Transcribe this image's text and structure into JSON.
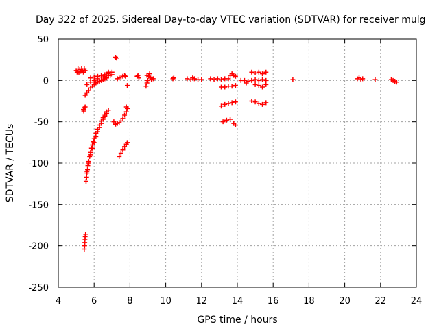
{
  "chart_data": {
    "type": "scatter",
    "title": "Day 322 of 2025, Sidereal Day-to-day VTEC variation (SDTVAR) for receiver mulg",
    "xlabel": "GPS time / hours",
    "ylabel": "SDTVAR / TECUs",
    "xlim": [
      4,
      24
    ],
    "ylim": [
      -250,
      50
    ],
    "xticks": [
      4,
      6,
      8,
      10,
      12,
      14,
      16,
      18,
      20,
      22,
      24
    ],
    "yticks": [
      -250,
      -200,
      -150,
      -100,
      -50,
      0,
      50
    ],
    "grid": true,
    "marker": "plus",
    "color": "#ff0000",
    "series": [
      {
        "points": [
          [
            5.0,
            12
          ],
          [
            5.05,
            10
          ],
          [
            5.1,
            14
          ],
          [
            5.15,
            9
          ],
          [
            5.2,
            13
          ],
          [
            5.25,
            11
          ],
          [
            5.3,
            14
          ],
          [
            5.35,
            12
          ],
          [
            5.4,
            10
          ],
          [
            5.45,
            14
          ],
          [
            5.5,
            12
          ],
          [
            5.4,
            -35
          ],
          [
            5.45,
            -33
          ],
          [
            5.5,
            -32
          ],
          [
            5.42,
            -37
          ],
          [
            5.45,
            -204
          ],
          [
            5.47,
            -200
          ],
          [
            5.48,
            -196
          ],
          [
            5.49,
            -192
          ],
          [
            5.5,
            -189
          ],
          [
            5.52,
            -186
          ],
          [
            5.55,
            -122
          ],
          [
            5.58,
            -117
          ],
          [
            5.6,
            -112
          ],
          [
            5.63,
            -108
          ],
          [
            5.65,
            -103
          ],
          [
            5.7,
            -98
          ],
          [
            5.75,
            -92
          ],
          [
            5.8,
            -87
          ],
          [
            5.85,
            -82
          ],
          [
            5.9,
            -78
          ],
          [
            5.95,
            -74
          ],
          [
            6.0,
            -70
          ],
          [
            6.1,
            -64
          ],
          [
            6.2,
            -59
          ],
          [
            6.3,
            -54
          ],
          [
            6.4,
            -49
          ],
          [
            6.5,
            -45
          ],
          [
            6.6,
            -41
          ],
          [
            6.7,
            -38
          ],
          [
            6.8,
            -36
          ],
          [
            5.6,
            -110
          ],
          [
            5.7,
            -100
          ],
          [
            5.8,
            -90
          ],
          [
            5.9,
            -82
          ],
          [
            6.0,
            -75
          ],
          [
            6.1,
            -68
          ],
          [
            6.2,
            -62
          ],
          [
            6.3,
            -57
          ],
          [
            6.4,
            -52
          ],
          [
            6.5,
            -47
          ],
          [
            6.6,
            -43
          ],
          [
            6.7,
            -40
          ],
          [
            5.5,
            -18
          ],
          [
            5.6,
            -15
          ],
          [
            5.7,
            -12
          ],
          [
            5.8,
            -9
          ],
          [
            5.9,
            -7
          ],
          [
            6.0,
            -5
          ],
          [
            6.1,
            -3
          ],
          [
            6.2,
            -2
          ],
          [
            6.3,
            -1
          ],
          [
            6.4,
            0
          ],
          [
            6.5,
            1
          ],
          [
            6.6,
            2
          ],
          [
            6.7,
            3
          ],
          [
            5.6,
            -5
          ],
          [
            5.8,
            -2
          ],
          [
            6.0,
            0
          ],
          [
            6.2,
            2
          ],
          [
            6.4,
            4
          ],
          [
            6.6,
            5
          ],
          [
            6.8,
            6
          ],
          [
            7.0,
            7
          ],
          [
            5.8,
            3
          ],
          [
            6.0,
            4
          ],
          [
            6.2,
            5
          ],
          [
            6.4,
            6
          ],
          [
            6.6,
            7
          ],
          [
            6.8,
            8
          ],
          [
            6.9,
            9
          ],
          [
            7.0,
            10
          ],
          [
            6.9,
            6
          ],
          [
            6.8,
            10
          ],
          [
            7.2,
            28
          ],
          [
            7.25,
            27
          ],
          [
            7.1,
            -50
          ],
          [
            7.2,
            -53
          ],
          [
            7.3,
            -52
          ],
          [
            7.4,
            -51
          ],
          [
            7.5,
            -49
          ],
          [
            7.6,
            -46
          ],
          [
            7.7,
            -42
          ],
          [
            7.8,
            -38
          ],
          [
            7.85,
            -34
          ],
          [
            7.8,
            -32
          ],
          [
            7.4,
            -92
          ],
          [
            7.5,
            -88
          ],
          [
            7.6,
            -84
          ],
          [
            7.7,
            -80
          ],
          [
            7.8,
            -77
          ],
          [
            7.85,
            -75
          ],
          [
            7.3,
            2
          ],
          [
            7.4,
            3
          ],
          [
            7.5,
            4
          ],
          [
            7.6,
            5
          ],
          [
            7.7,
            6
          ],
          [
            7.75,
            5
          ],
          [
            7.85,
            -6
          ],
          [
            8.4,
            5
          ],
          [
            8.45,
            6
          ],
          [
            8.5,
            3
          ],
          [
            8.9,
            -7
          ],
          [
            8.95,
            -3
          ],
          [
            9.0,
            0
          ],
          [
            9.05,
            5
          ],
          [
            9.1,
            8
          ],
          [
            9.15,
            3
          ],
          [
            9.2,
            1
          ],
          [
            9.3,
            2
          ],
          [
            8.95,
            6
          ],
          [
            10.4,
            2
          ],
          [
            10.45,
            3
          ],
          [
            11.2,
            2
          ],
          [
            11.4,
            1
          ],
          [
            11.6,
            2
          ],
          [
            11.8,
            1
          ],
          [
            12.0,
            1
          ],
          [
            11.5,
            3
          ],
          [
            12.5,
            2
          ],
          [
            12.7,
            1
          ],
          [
            12.9,
            2
          ],
          [
            13.1,
            1
          ],
          [
            13.3,
            2
          ],
          [
            13.5,
            2
          ],
          [
            13.6,
            6
          ],
          [
            13.7,
            8
          ],
          [
            13.8,
            6
          ],
          [
            13.9,
            5
          ],
          [
            13.1,
            -8
          ],
          [
            13.3,
            -8
          ],
          [
            13.5,
            -7
          ],
          [
            13.7,
            -7
          ],
          [
            13.9,
            -6
          ],
          [
            13.1,
            -31
          ],
          [
            13.3,
            -29
          ],
          [
            13.5,
            -28
          ],
          [
            13.7,
            -27
          ],
          [
            13.9,
            -26
          ],
          [
            13.2,
            -50
          ],
          [
            13.4,
            -48
          ],
          [
            13.6,
            -47
          ],
          [
            13.8,
            -52
          ],
          [
            13.9,
            -54
          ],
          [
            14.2,
            0
          ],
          [
            14.4,
            0
          ],
          [
            14.6,
            -1
          ],
          [
            14.8,
            0
          ],
          [
            15.0,
            1
          ],
          [
            15.2,
            0
          ],
          [
            15.4,
            1
          ],
          [
            15.6,
            0
          ],
          [
            14.8,
            10
          ],
          [
            15.0,
            9
          ],
          [
            15.2,
            10
          ],
          [
            15.4,
            8
          ],
          [
            15.6,
            10
          ],
          [
            15.0,
            -5
          ],
          [
            15.2,
            -6
          ],
          [
            15.4,
            -8
          ],
          [
            15.6,
            -5
          ],
          [
            14.5,
            -3
          ],
          [
            14.8,
            -25
          ],
          [
            15.0,
            -26
          ],
          [
            15.2,
            -28
          ],
          [
            15.4,
            -29
          ],
          [
            15.6,
            -27
          ],
          [
            17.1,
            1
          ],
          [
            20.7,
            2
          ],
          [
            20.8,
            3
          ],
          [
            20.9,
            1
          ],
          [
            21.0,
            2
          ],
          [
            21.7,
            1
          ],
          [
            22.6,
            1
          ],
          [
            22.7,
            0
          ],
          [
            22.8,
            -1
          ],
          [
            22.9,
            -2
          ]
        ]
      }
    ]
  }
}
